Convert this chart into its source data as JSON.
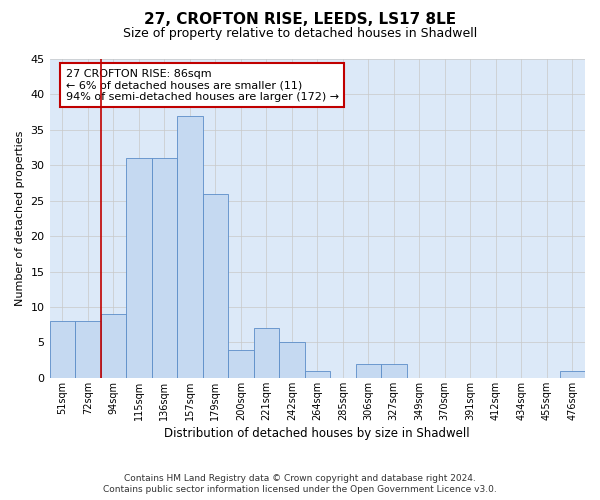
{
  "title": "27, CROFTON RISE, LEEDS, LS17 8LE",
  "subtitle": "Size of property relative to detached houses in Shadwell",
  "xlabel": "Distribution of detached houses by size in Shadwell",
  "ylabel": "Number of detached properties",
  "categories": [
    "51sqm",
    "72sqm",
    "94sqm",
    "115sqm",
    "136sqm",
    "157sqm",
    "179sqm",
    "200sqm",
    "221sqm",
    "242sqm",
    "264sqm",
    "285sqm",
    "306sqm",
    "327sqm",
    "349sqm",
    "370sqm",
    "391sqm",
    "412sqm",
    "434sqm",
    "455sqm",
    "476sqm"
  ],
  "values": [
    8,
    8,
    9,
    31,
    31,
    37,
    26,
    4,
    7,
    5,
    1,
    0,
    2,
    2,
    0,
    0,
    0,
    0,
    0,
    0,
    1
  ],
  "bar_color": "#c5d9f1",
  "bar_edge_color": "#5b8dc8",
  "highlight_color": "#c00000",
  "vline_x": 1.5,
  "annotation_text": "27 CROFTON RISE: 86sqm\n← 6% of detached houses are smaller (11)\n94% of semi-detached houses are larger (172) →",
  "annotation_box_color": "#ffffff",
  "annotation_box_edge": "#c00000",
  "ylim": [
    0,
    45
  ],
  "yticks": [
    0,
    5,
    10,
    15,
    20,
    25,
    30,
    35,
    40,
    45
  ],
  "footer_line1": "Contains HM Land Registry data © Crown copyright and database right 2024.",
  "footer_line2": "Contains public sector information licensed under the Open Government Licence v3.0.",
  "bg_color": "#ffffff",
  "plot_bg_color": "#dce9f8",
  "grid_color": "#c8c8c8"
}
